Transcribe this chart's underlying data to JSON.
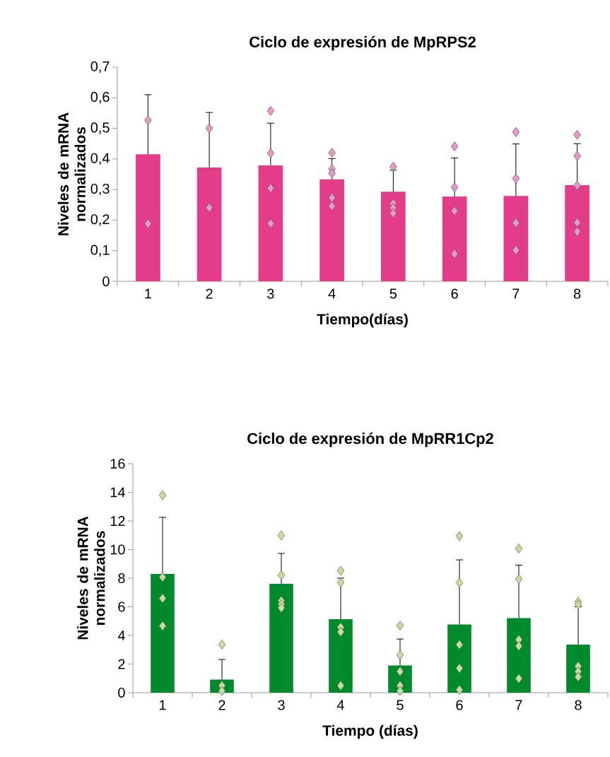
{
  "chart_data": [
    {
      "type": "bar",
      "title": "Ciclo de expresión de MpRPS2",
      "xlabel": "Tiempo(días)",
      "ylabel": "Niveles de mRNA normalizados",
      "categories": [
        "1",
        "2",
        "3",
        "4",
        "5",
        "6",
        "7",
        "8"
      ],
      "ylim": [
        0,
        0.7
      ],
      "yticks": [
        {
          "value": 0,
          "label": "0"
        },
        {
          "value": 0.1,
          "label": "0,1"
        },
        {
          "value": 0.2,
          "label": "0,2"
        },
        {
          "value": 0.3,
          "label": "0,3"
        },
        {
          "value": 0.4,
          "label": "0,4"
        },
        {
          "value": 0.5,
          "label": "0,5"
        },
        {
          "value": 0.6,
          "label": "0,6"
        },
        {
          "value": 0.7,
          "label": "0,7"
        }
      ],
      "series": [
        {
          "color": "#e33d8a",
          "values": [
            0.415,
            0.372,
            0.379,
            0.333,
            0.293,
            0.277,
            0.279,
            0.314
          ],
          "errors": [
            0.195,
            0.18,
            0.138,
            0.068,
            0.07,
            0.126,
            0.17,
            0.136
          ]
        },
        {
          "type": "scatter",
          "marker": "diamond",
          "color": "#e49cc4",
          "x": [
            "1",
            "1",
            "2",
            "2",
            "3",
            "3",
            "3",
            "3",
            "4",
            "4",
            "4",
            "4",
            "4",
            "5",
            "5",
            "5",
            "5",
            "6",
            "6",
            "6",
            "6",
            "7",
            "7",
            "7",
            "7",
            "8",
            "8",
            "8",
            "8",
            "8"
          ],
          "values": [
            0.527,
            0.188,
            0.5,
            0.241,
            0.557,
            0.419,
            0.304,
            0.189,
            0.42,
            0.367,
            0.353,
            0.273,
            0.246,
            0.375,
            0.255,
            0.24,
            0.223,
            0.441,
            0.307,
            0.23,
            0.09,
            0.488,
            0.336,
            0.191,
            0.102,
            0.479,
            0.41,
            0.313,
            0.192,
            0.162
          ]
        }
      ]
    },
    {
      "type": "bar",
      "title": "Ciclo de expresión de MpRR1Cp2",
      "xlabel": "Tiempo (días)",
      "ylabel": "Niveles de mRNA normalizados",
      "categories": [
        "1",
        "2",
        "3",
        "4",
        "5",
        "6",
        "7",
        "8"
      ],
      "ylim": [
        0,
        16
      ],
      "yticks": [
        0,
        2,
        4,
        6,
        8,
        10,
        12,
        14,
        16
      ],
      "series": [
        {
          "color": "#008a2e",
          "values": [
            8.3,
            0.91,
            7.6,
            5.14,
            1.9,
            4.77,
            5.21,
            3.36
          ],
          "errors": [
            3.95,
            1.41,
            2.13,
            2.86,
            1.85,
            4.51,
            3.7,
            2.64
          ]
        },
        {
          "type": "scatter",
          "marker": "diamond",
          "color": "#c6dca2",
          "x": [
            "1",
            "1",
            "1",
            "1",
            "2",
            "2",
            "2",
            "3",
            "3",
            "3",
            "3",
            "3",
            "4",
            "4",
            "4",
            "4",
            "4",
            "5",
            "5",
            "5",
            "5",
            "5",
            "6",
            "6",
            "6",
            "6",
            "6",
            "7",
            "7",
            "7",
            "7",
            "7",
            "8",
            "8",
            "8",
            "8",
            "8"
          ],
          "values": [
            13.8,
            8.07,
            6.59,
            4.67,
            3.36,
            0.49,
            0.12,
            10.99,
            8.2,
            6.42,
            6.17,
            5.93,
            8.52,
            7.7,
            4.57,
            4.25,
            0.49,
            4.69,
            2.64,
            1.48,
            0.49,
            0.12,
            10.94,
            7.68,
            3.36,
            1.7,
            0.2,
            10.07,
            7.95,
            3.7,
            3.26,
            0.99,
            6.35,
            6.15,
            1.85,
            1.48,
            1.11
          ]
        }
      ]
    }
  ]
}
